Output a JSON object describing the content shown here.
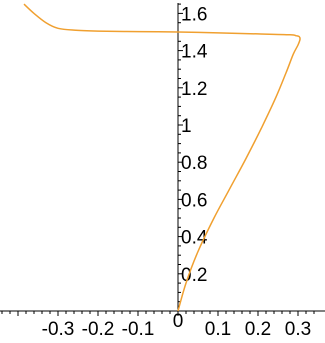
{
  "chart_data": {
    "type": "line",
    "title": "",
    "xlabel": "",
    "ylabel": "",
    "xlim": [
      -0.39,
      0.33
    ],
    "ylim": [
      0,
      1.65
    ],
    "x_ticks": [
      -0.3,
      -0.2,
      -0.1,
      0,
      0.1,
      0.2,
      0.3
    ],
    "x_tick_labels": [
      "-0.3",
      "-0.2",
      "-0.1",
      "0",
      "0.1",
      "0.2",
      "0.3"
    ],
    "y_ticks": [
      0.2,
      0.4,
      0.6,
      0.8,
      1,
      1.2,
      1.4,
      1.6
    ],
    "y_tick_labels": [
      "0.2",
      "0.4",
      "0.6",
      "0.8",
      "1",
      "1.2",
      "1.4",
      "1.6"
    ],
    "grid": false,
    "series": [
      {
        "color": "#f0a030",
        "x": [
          0.0,
          0.02,
          0.05,
          0.09,
          0.13,
          0.17,
          0.21,
          0.245,
          0.27,
          0.288,
          0.3,
          0.305,
          0.303,
          0.295,
          0.28,
          0.2,
          0.1,
          0.0,
          -0.1,
          -0.2,
          -0.26,
          -0.3,
          -0.33,
          -0.36,
          -0.385
        ],
        "y": [
          0.0,
          0.15,
          0.32,
          0.5,
          0.66,
          0.82,
          0.99,
          1.15,
          1.28,
          1.38,
          1.43,
          1.46,
          1.475,
          1.48,
          1.485,
          1.49,
          1.495,
          1.5,
          1.502,
          1.505,
          1.51,
          1.52,
          1.55,
          1.6,
          1.65
        ]
      }
    ]
  }
}
